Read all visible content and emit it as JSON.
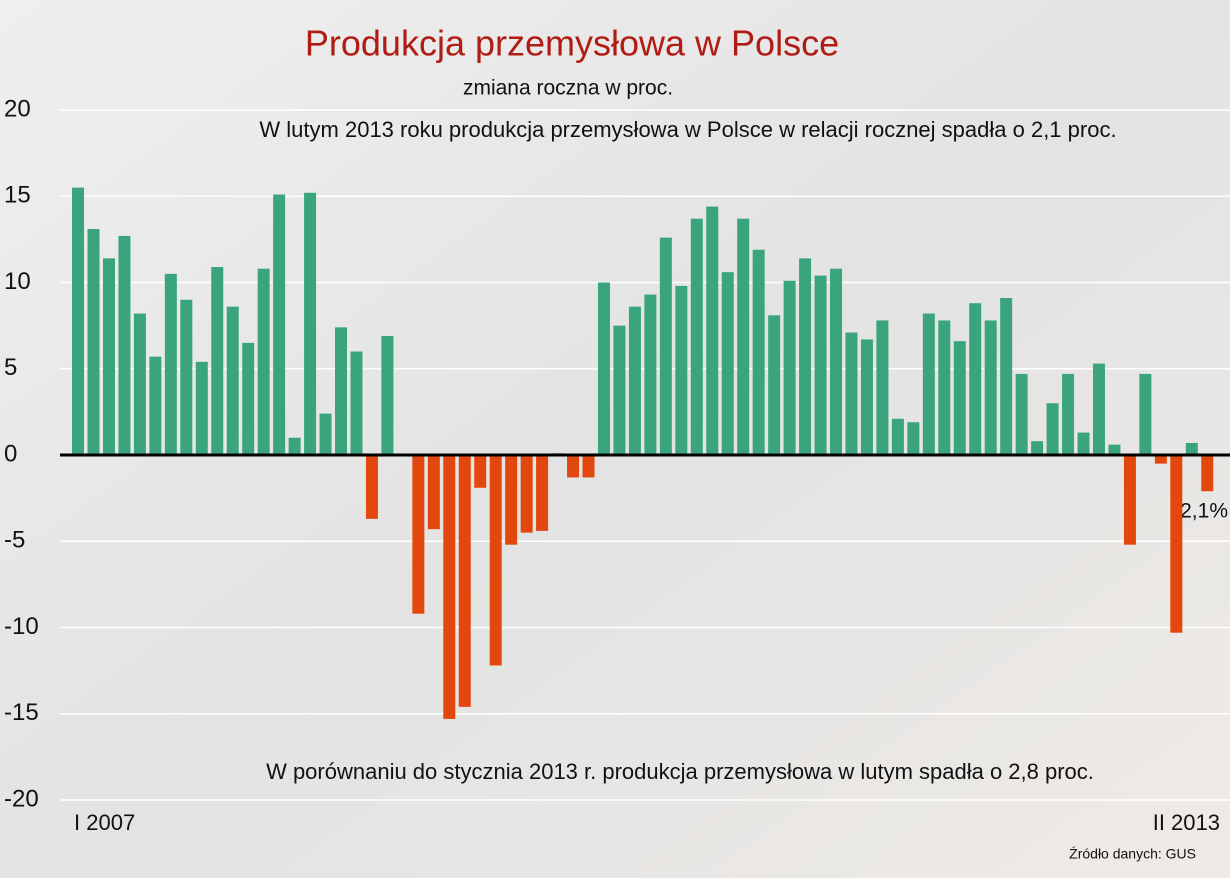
{
  "chart_data": {
    "type": "bar",
    "title": "Produkcja przemysłowa w Polsce",
    "subtitle": "zmiana roczna w proc.",
    "annotations": [
      "W lutym 2013 roku produkcja przemysłowa w Polsce w relacji rocznej spadła o 2,1 proc.",
      "W porównaniu do stycznia 2013 r. produkcja przemysłowa w lutym spadła o 2,8 proc.",
      "2,1%"
    ],
    "source": "Źródło danych: GUS",
    "categories": [
      "I 2007",
      null,
      null,
      null,
      null,
      null,
      null,
      null,
      null,
      null,
      null,
      null,
      null,
      null,
      null,
      null,
      null,
      null,
      null,
      null,
      null,
      null,
      null,
      null,
      null,
      null,
      null,
      null,
      null,
      null,
      null,
      null,
      null,
      null,
      null,
      null,
      null,
      null,
      null,
      null,
      null,
      null,
      null,
      null,
      null,
      null,
      null,
      null,
      null,
      null,
      null,
      null,
      null,
      null,
      null,
      null,
      null,
      null,
      null,
      null,
      null,
      null,
      null,
      null,
      null,
      null,
      null,
      null,
      null,
      null,
      null,
      null,
      null,
      "II 2013"
    ],
    "values": [
      15.5,
      13.1,
      11.4,
      12.7,
      8.2,
      5.7,
      10.5,
      9.0,
      5.4,
      10.9,
      8.6,
      6.5,
      10.8,
      15.1,
      1.0,
      15.2,
      2.4,
      7.4,
      6.0,
      -3.7,
      6.9,
      0,
      -9.2,
      -4.3,
      -15.3,
      -14.6,
      -1.9,
      -12.2,
      -5.2,
      -4.5,
      -4.4,
      0.1,
      -1.3,
      -1.3,
      10.0,
      7.5,
      8.6,
      9.3,
      12.6,
      9.8,
      13.7,
      14.4,
      10.6,
      13.7,
      11.9,
      8.1,
      10.1,
      11.4,
      10.4,
      10.8,
      7.1,
      6.7,
      7.8,
      2.1,
      1.9,
      8.2,
      7.8,
      6.6,
      8.8,
      7.8,
      9.1,
      4.7,
      0.8,
      3.0,
      4.7,
      1.3,
      5.3,
      0.6,
      -5.2,
      4.7,
      -0.5,
      -10.3,
      0.7,
      -2.1
    ],
    "positive_color": "#3aa57c",
    "negative_color": "#e2470e",
    "ylim": [
      -20,
      20
    ],
    "yticks": [
      -20,
      -15,
      -10,
      -5,
      0,
      5,
      10,
      15,
      20
    ],
    "grid": true
  }
}
